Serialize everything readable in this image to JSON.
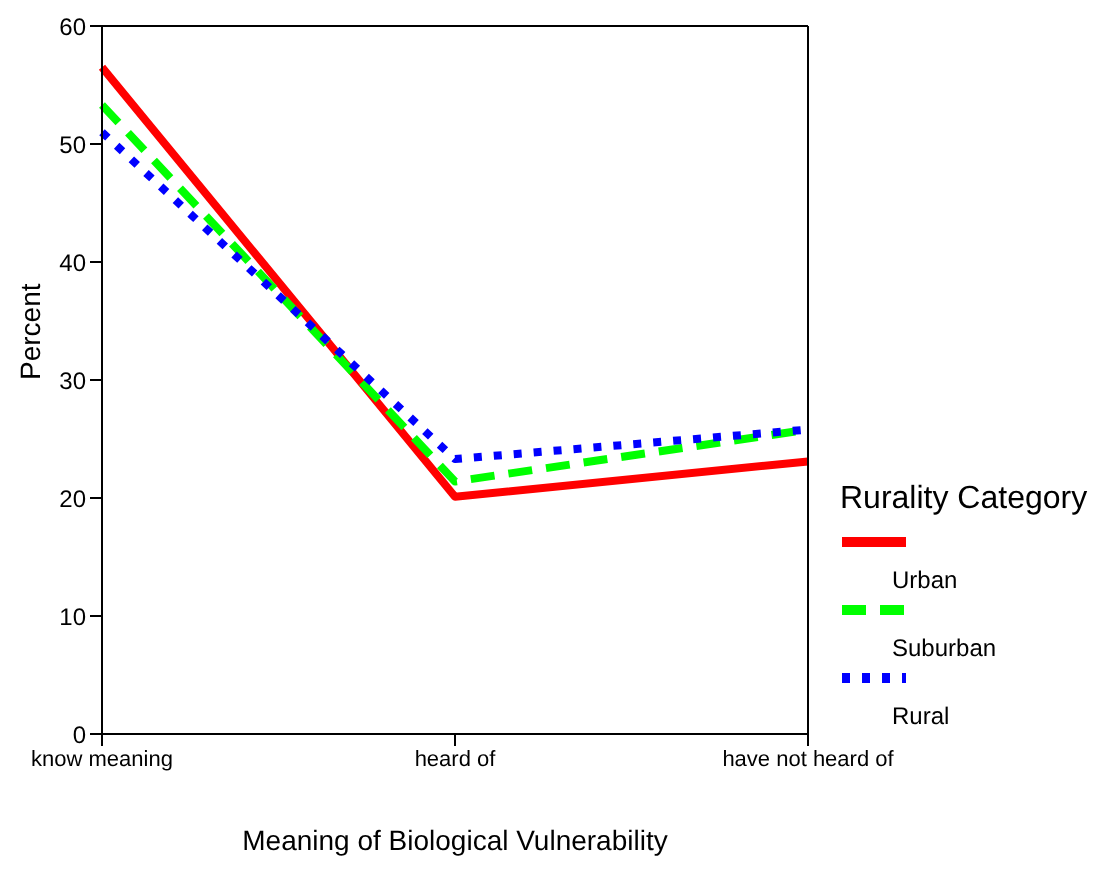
{
  "chart_data": {
    "type": "line",
    "xlabel": "Meaning of Biological Vulnerability",
    "ylabel": "Percent",
    "legend_title": "Rurality Category",
    "categories": [
      "know meaning",
      "heard of",
      "have not heard of"
    ],
    "ylim": [
      0,
      60
    ],
    "yticks": [
      0,
      10,
      20,
      30,
      40,
      50,
      60
    ],
    "grid": false,
    "legend": "right",
    "marker": "none",
    "series": [
      {
        "name": "Urban",
        "color": "#ff0000",
        "line_style": "solid",
        "values": [
          56.5,
          20.1,
          23.1
        ]
      },
      {
        "name": "Suburban",
        "color": "#00ff00",
        "line_style": "dashed",
        "values": [
          53.3,
          21.4,
          25.8
        ]
      },
      {
        "name": "Rural",
        "color": "#0000ff",
        "line_style": "dotted",
        "values": [
          51.0,
          23.3,
          25.8
        ]
      }
    ]
  }
}
